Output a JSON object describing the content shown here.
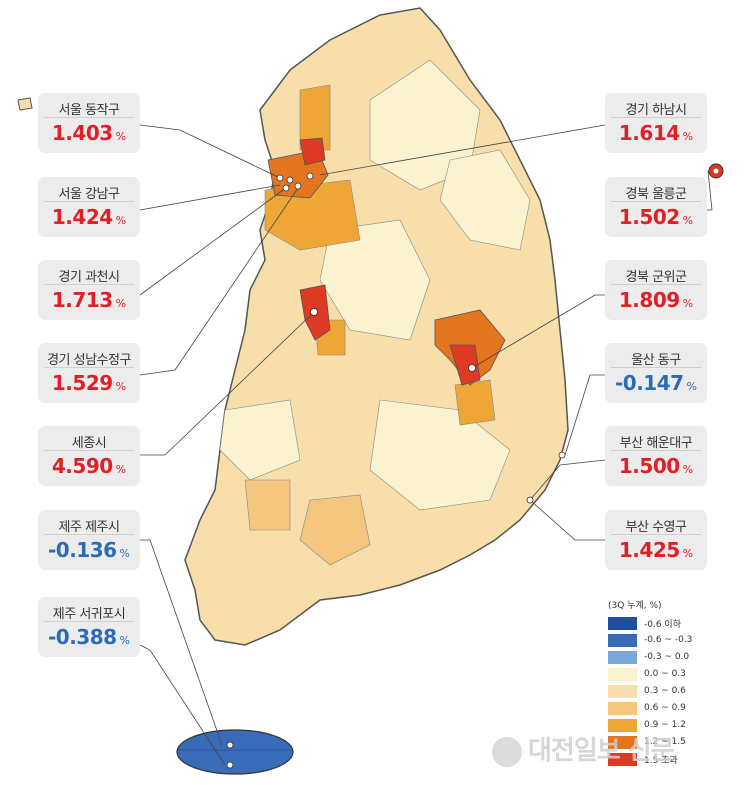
{
  "map": {
    "labels": [
      {
        "name": "서울 동작구",
        "value": "1.403",
        "unit": "%",
        "sign": "pos"
      },
      {
        "name": "서울 강남구",
        "value": "1.424",
        "unit": "%",
        "sign": "pos"
      },
      {
        "name": "경기 과천시",
        "value": "1.713",
        "unit": "%",
        "sign": "pos"
      },
      {
        "name": "경기 성남수정구",
        "value": "1.529",
        "unit": "%",
        "sign": "pos"
      },
      {
        "name": "세종시",
        "value": "4.590",
        "unit": "%",
        "sign": "pos"
      },
      {
        "name": "제주 제주시",
        "value": "-0.136",
        "unit": "%",
        "sign": "neg"
      },
      {
        "name": "제주 서귀포시",
        "value": "-0.388",
        "unit": "%",
        "sign": "neg"
      },
      {
        "name": "경기 하남시",
        "value": "1.614",
        "unit": "%",
        "sign": "pos"
      },
      {
        "name": "경북 울릉군",
        "value": "1.502",
        "unit": "%",
        "sign": "pos"
      },
      {
        "name": "경북 군위군",
        "value": "1.809",
        "unit": "%",
        "sign": "pos"
      },
      {
        "name": "울산 동구",
        "value": "-0.147",
        "unit": "%",
        "sign": "neg"
      },
      {
        "name": "부산 해운대구",
        "value": "1.500",
        "unit": "%",
        "sign": "pos"
      },
      {
        "name": "부산 수영구",
        "value": "1.425",
        "unit": "%",
        "sign": "pos"
      }
    ],
    "legend": {
      "title": "(3Q 누계, %)",
      "items": [
        {
          "label": "-0.6 이하",
          "color": "#1f4e9c"
        },
        {
          "label": "-0.6 ~ -0.3",
          "color": "#3a6bb8"
        },
        {
          "label": "-0.3 ~ 0.0",
          "color": "#7ba8dc"
        },
        {
          "label": "0.0 ~ 0.3",
          "color": "#fbf3cf"
        },
        {
          "label": "0.3 ~ 0.6",
          "color": "#f7deab"
        },
        {
          "label": "0.6 ~ 0.9",
          "color": "#f3c57e"
        },
        {
          "label": "0.9 ~ 1.2",
          "color": "#eea637"
        },
        {
          "label": "1.2 ~ 1.5",
          "color": "#e4751f"
        },
        {
          "label": "1.5 초과",
          "color": "#dc3a22"
        }
      ]
    },
    "colors": {
      "positive": "#e01f26",
      "negative": "#2b6cb5",
      "card_bg": "#ececec"
    }
  },
  "watermark": "대전일보 신문"
}
